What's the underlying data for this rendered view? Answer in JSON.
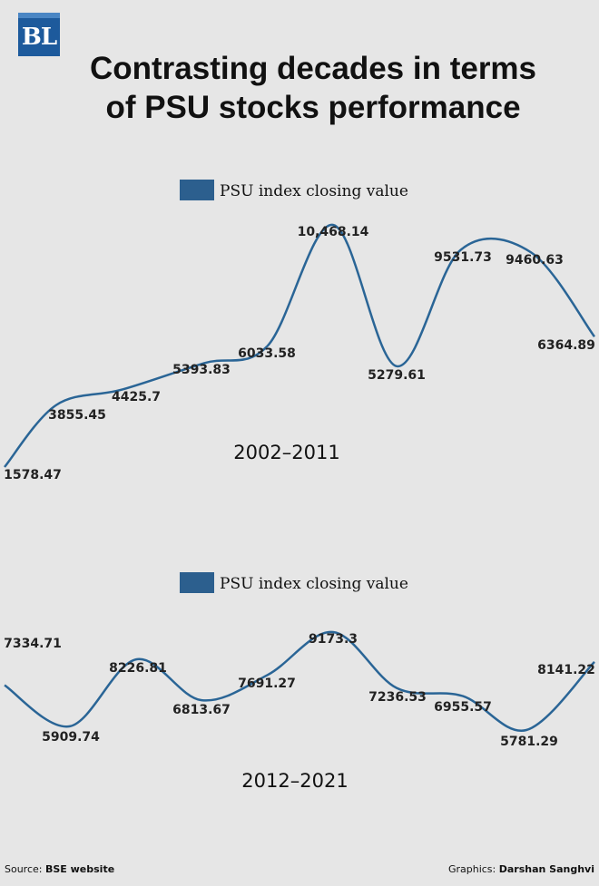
{
  "logo": "BL",
  "title_line1": "Contrasting decades in terms",
  "title_line2": "of PSU stocks performance",
  "colors": {
    "line": "#2a6596",
    "legend_swatch": "#2c5f8e",
    "background": "#e6e6e6"
  },
  "chart_data": [
    {
      "type": "line",
      "legend": "PSU index closing value",
      "series": [
        {
          "name": "PSU index closing value",
          "values": [
            1578.47,
            3855.45,
            4425.7,
            5393.83,
            6033.58,
            10468.14,
            5279.61,
            9531.73,
            9460.63,
            6364.89
          ]
        }
      ],
      "labels": [
        "1578.47",
        "3855.45",
        "4425.7",
        "5393.83",
        "6033.58",
        "10,468.14",
        "5279.61",
        "9531.73",
        "9460.63",
        "6364.89"
      ],
      "annotation": "2002–2011"
    },
    {
      "type": "line",
      "legend": "PSU index closing value",
      "series": [
        {
          "name": "PSU index closing value",
          "values": [
            7334.71,
            5909.74,
            8226.81,
            6813.67,
            7691.27,
            9173.3,
            7236.53,
            6955.57,
            5781.29,
            8141.22
          ]
        }
      ],
      "labels": [
        "7334.71",
        "5909.74",
        "8226.81",
        "6813.67",
        "7691.27",
        "9173.3",
        "7236.53",
        "6955.57",
        "5781.29",
        "8141.22"
      ],
      "annotation": "2012–2021"
    }
  ],
  "footer": {
    "source_prefix": "Source: ",
    "source": "BSE website",
    "credit_prefix": "Graphics: ",
    "credit": "Darshan Sanghvi"
  }
}
